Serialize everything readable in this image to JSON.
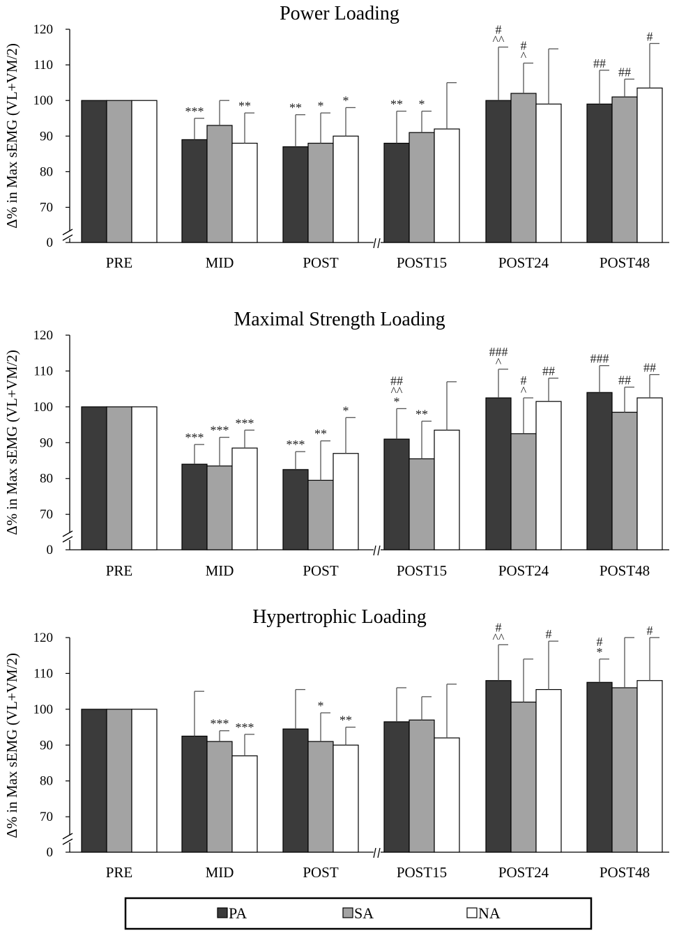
{
  "colors": {
    "PA": "#3b3b3b",
    "SA": "#a3a3a3",
    "NA": "#ffffff",
    "axis": "#000000",
    "error": "#555555"
  },
  "legend": [
    {
      "key": "PA",
      "label": "PA"
    },
    {
      "key": "SA",
      "label": "SA"
    },
    {
      "key": "NA",
      "label": "NA"
    }
  ],
  "chart_data": [
    {
      "type": "bar",
      "title": "Power Loading",
      "ylabel": "Δ% in Max sEMG (VL+VM/2)",
      "yticks": [
        "0",
        "70",
        "80",
        "90",
        "100",
        "110",
        "120"
      ],
      "ylim": [
        60,
        120
      ],
      "axis_break": "between 0 and 70 on y; between POST and POST15 on x",
      "categories": [
        "PRE",
        "MID",
        "POST",
        "POST15",
        "POST24",
        "POST48"
      ],
      "series": [
        {
          "name": "PA",
          "values": [
            100,
            89,
            87,
            88,
            100,
            99
          ],
          "errors": [
            0,
            6,
            9,
            9,
            15,
            9.5
          ],
          "annotations": [
            "",
            "***",
            "**",
            "**",
            "#\n^^",
            "##"
          ]
        },
        {
          "name": "SA",
          "values": [
            100,
            93,
            88,
            91,
            102,
            101
          ],
          "errors": [
            0,
            7,
            8.5,
            6,
            8.5,
            5
          ],
          "annotations": [
            "",
            "",
            "*",
            "*",
            "#\n^",
            "##"
          ]
        },
        {
          "name": "NA",
          "values": [
            100,
            88,
            90,
            92,
            99,
            103.5
          ],
          "errors": [
            0,
            8.5,
            8,
            13,
            15.5,
            12.5
          ],
          "annotations": [
            "",
            "**",
            "*",
            "",
            "",
            "#"
          ]
        }
      ]
    },
    {
      "type": "bar",
      "title": "Maximal Strength Loading",
      "ylabel": "Δ% in Max sEMG (VL+VM/2)",
      "yticks": [
        "0",
        "70",
        "80",
        "90",
        "100",
        "110",
        "120"
      ],
      "ylim": [
        60,
        120
      ],
      "axis_break": "between 0 and 70 on y; between POST and POST15 on x",
      "categories": [
        "PRE",
        "MID",
        "POST",
        "POST15",
        "POST24",
        "POST48"
      ],
      "series": [
        {
          "name": "PA",
          "values": [
            100,
            84,
            82.5,
            91,
            102.5,
            104
          ],
          "errors": [
            0,
            5.5,
            5,
            8.5,
            8,
            7.5
          ],
          "annotations": [
            "",
            "***",
            "***",
            "##\n^^\n*",
            "###\n^",
            "###"
          ]
        },
        {
          "name": "SA",
          "values": [
            100,
            83.5,
            79.5,
            85.5,
            92.5,
            98.5
          ],
          "errors": [
            0,
            8,
            11,
            10.5,
            10,
            7
          ],
          "annotations": [
            "",
            "***",
            "**",
            "**",
            "#\n^",
            "##"
          ]
        },
        {
          "name": "NA",
          "values": [
            100,
            88.5,
            87,
            93.5,
            101.5,
            102.5
          ],
          "errors": [
            0,
            5,
            10,
            13.5,
            6.5,
            6.5
          ],
          "annotations": [
            "",
            "***",
            "*",
            "",
            "##",
            "##"
          ]
        }
      ]
    },
    {
      "type": "bar",
      "title": "Hypertrophic Loading",
      "ylabel": "Δ% in Max sEMG (VL+VM/2)",
      "yticks": [
        "0",
        "70",
        "80",
        "90",
        "100",
        "110",
        "120"
      ],
      "ylim": [
        60,
        120
      ],
      "axis_break": "between 0 and 70 on y; between POST and POST15 on x",
      "categories": [
        "PRE",
        "MID",
        "POST",
        "POST15",
        "POST24",
        "POST48"
      ],
      "series": [
        {
          "name": "PA",
          "values": [
            100,
            92.5,
            94.5,
            96.5,
            108,
            107.5
          ],
          "errors": [
            0,
            12.5,
            11,
            9.5,
            10,
            6.5
          ],
          "annotations": [
            "",
            "",
            "",
            "",
            "#\n^^",
            "#\n*"
          ]
        },
        {
          "name": "SA",
          "values": [
            100,
            91,
            91,
            97,
            102,
            106
          ],
          "errors": [
            0,
            3,
            8,
            6.5,
            12,
            14
          ],
          "annotations": [
            "",
            "***",
            "*",
            "",
            "",
            ""
          ]
        },
        {
          "name": "NA",
          "values": [
            100,
            87,
            90,
            92,
            105.5,
            108
          ],
          "errors": [
            0,
            6,
            5,
            15,
            13.5,
            12
          ],
          "annotations": [
            "",
            "***",
            "**",
            "",
            "#",
            "#"
          ]
        }
      ]
    }
  ]
}
